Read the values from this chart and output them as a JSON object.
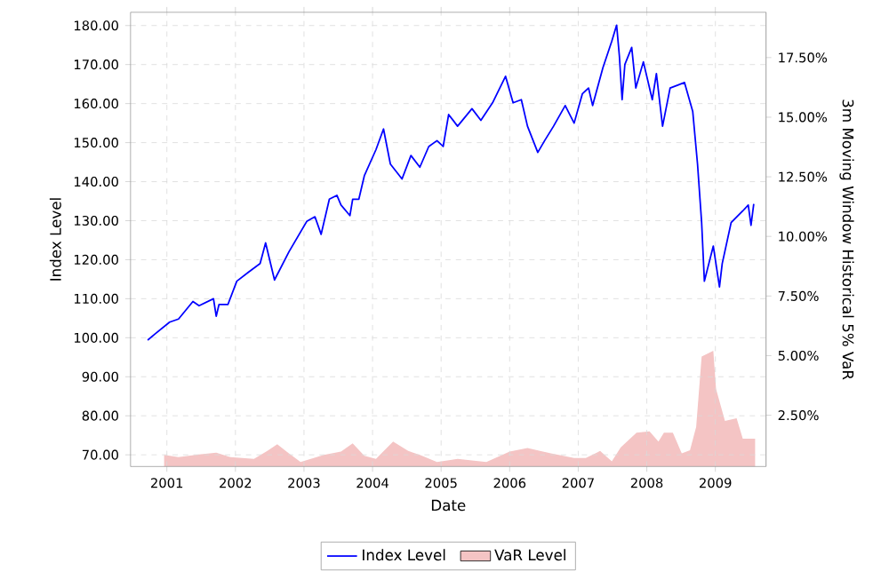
{
  "chart_data": {
    "type": "line",
    "xlabel": "Date",
    "ylabel": "Index Level",
    "y2label": "3m Moving Window Historical 5% VaR",
    "xlim": [
      2000.47,
      2009.74
    ],
    "ylim": [
      67,
      183.4
    ],
    "y2lim": [
      0.35,
      19.4
    ],
    "xticks": [
      2001,
      2002,
      2003,
      2004,
      2005,
      2006,
      2007,
      2008,
      2009
    ],
    "yticks": [
      {
        "value": 70,
        "label": "70.00"
      },
      {
        "value": 80,
        "label": "80.00"
      },
      {
        "value": 90,
        "label": "90.00"
      },
      {
        "value": 100,
        "label": "100.00"
      },
      {
        "value": 110,
        "label": "110.00"
      },
      {
        "value": 120,
        "label": "120.00"
      },
      {
        "value": 130,
        "label": "130.00"
      },
      {
        "value": 140,
        "label": "140.00"
      },
      {
        "value": 150,
        "label": "150.00"
      },
      {
        "value": 160,
        "label": "160.00"
      },
      {
        "value": 170,
        "label": "170.00"
      },
      {
        "value": 180,
        "label": "180.00"
      }
    ],
    "y2ticks": [
      {
        "value": 2.5,
        "label": "2.50%"
      },
      {
        "value": 5,
        "label": "5.00%"
      },
      {
        "value": 7.5,
        "label": "7.50%"
      },
      {
        "value": 10,
        "label": "10.00%"
      },
      {
        "value": 12.5,
        "label": "12.50%"
      },
      {
        "value": 15,
        "label": "15.00%"
      },
      {
        "value": 17.5,
        "label": "17.50%"
      }
    ],
    "grid": true,
    "legend": "bottom",
    "series": [
      {
        "name": "Index Level",
        "color": "#0000ff",
        "x": [
          2000.72,
          2000.83,
          2001.04,
          2001.17,
          2001.38,
          2001.47,
          2001.68,
          2001.72,
          2001.76,
          2001.89,
          2002.02,
          2002.19,
          2002.36,
          2002.44,
          2002.57,
          2002.78,
          2003.04,
          2003.16,
          2003.25,
          2003.37,
          2003.48,
          2003.54,
          2003.67,
          2003.71,
          2003.8,
          2003.88,
          2004.05,
          2004.16,
          2004.26,
          2004.43,
          2004.56,
          2004.69,
          2004.82,
          2004.94,
          2005.03,
          2005.11,
          2005.24,
          2005.45,
          2005.58,
          2005.75,
          2005.94,
          2006.05,
          2006.17,
          2006.26,
          2006.41,
          2006.51,
          2006.64,
          2006.81,
          2006.94,
          2007.06,
          2007.15,
          2007.21,
          2007.36,
          2007.49,
          2007.56,
          2007.6,
          2007.64,
          2007.68,
          2007.78,
          2007.84,
          2007.95,
          2008.08,
          2008.14,
          2008.23,
          2008.34,
          2008.55,
          2008.67,
          2008.74,
          2008.8,
          2008.84,
          2008.97,
          2009.06,
          2009.1,
          2009.23,
          2009.4,
          2009.48,
          2009.52,
          2009.56
        ],
        "values": [
          99.4,
          101,
          104,
          104.8,
          109.3,
          108.2,
          110,
          105.5,
          108.5,
          108.5,
          114.5,
          116.8,
          119,
          124.3,
          114.8,
          122,
          129.8,
          131,
          126.5,
          135.5,
          136.5,
          134,
          131.3,
          135.5,
          135.5,
          141.5,
          148.2,
          153.5,
          144.5,
          140.7,
          146.7,
          143.7,
          149,
          150.5,
          149,
          157.2,
          154.2,
          158.7,
          155.7,
          160.2,
          167,
          160.2,
          161,
          154.2,
          147.5,
          150.5,
          154.2,
          159.5,
          155,
          162.5,
          164,
          159.5,
          169.2,
          176,
          180.1,
          172.2,
          161,
          170,
          174.4,
          164,
          170.7,
          161,
          167.7,
          154.2,
          164,
          165.4,
          158,
          144.5,
          129.5,
          114.5,
          123.5,
          113,
          119,
          129.5,
          132.5,
          134,
          128.8,
          134.3
        ]
      },
      {
        "name": "VaR Level",
        "color": "#f4c4c4",
        "type": "area",
        "axis": "y2",
        "x": [
          2000.96,
          2001.17,
          2001.47,
          2001.72,
          2001.93,
          2002.27,
          2002.48,
          2002.61,
          2002.78,
          2002.95,
          2003.29,
          2003.54,
          2003.71,
          2003.88,
          2004.05,
          2004.3,
          2004.52,
          2004.69,
          2004.94,
          2005.24,
          2005.66,
          2006.0,
          2006.26,
          2006.6,
          2006.94,
          2007.11,
          2007.32,
          2007.49,
          2007.62,
          2007.85,
          2008.04,
          2008.17,
          2008.25,
          2008.38,
          2008.51,
          2008.63,
          2008.72,
          2008.8,
          2008.97,
          2009.01,
          2009.14,
          2009.31,
          2009.4,
          2009.52,
          2009.58
        ],
        "values": [
          0.84,
          0.74,
          0.86,
          0.93,
          0.74,
          0.67,
          1.03,
          1.28,
          0.9,
          0.54,
          0.84,
          0.98,
          1.32,
          0.8,
          0.67,
          1.4,
          1.0,
          0.84,
          0.54,
          0.67,
          0.54,
          0.98,
          1.13,
          0.9,
          0.71,
          0.71,
          1.0,
          0.57,
          1.15,
          1.77,
          1.82,
          1.4,
          1.77,
          1.77,
          0.9,
          1.03,
          2.01,
          4.96,
          5.2,
          3.6,
          2.26,
          2.37,
          1.52,
          1.52,
          1.52
        ]
      }
    ]
  }
}
